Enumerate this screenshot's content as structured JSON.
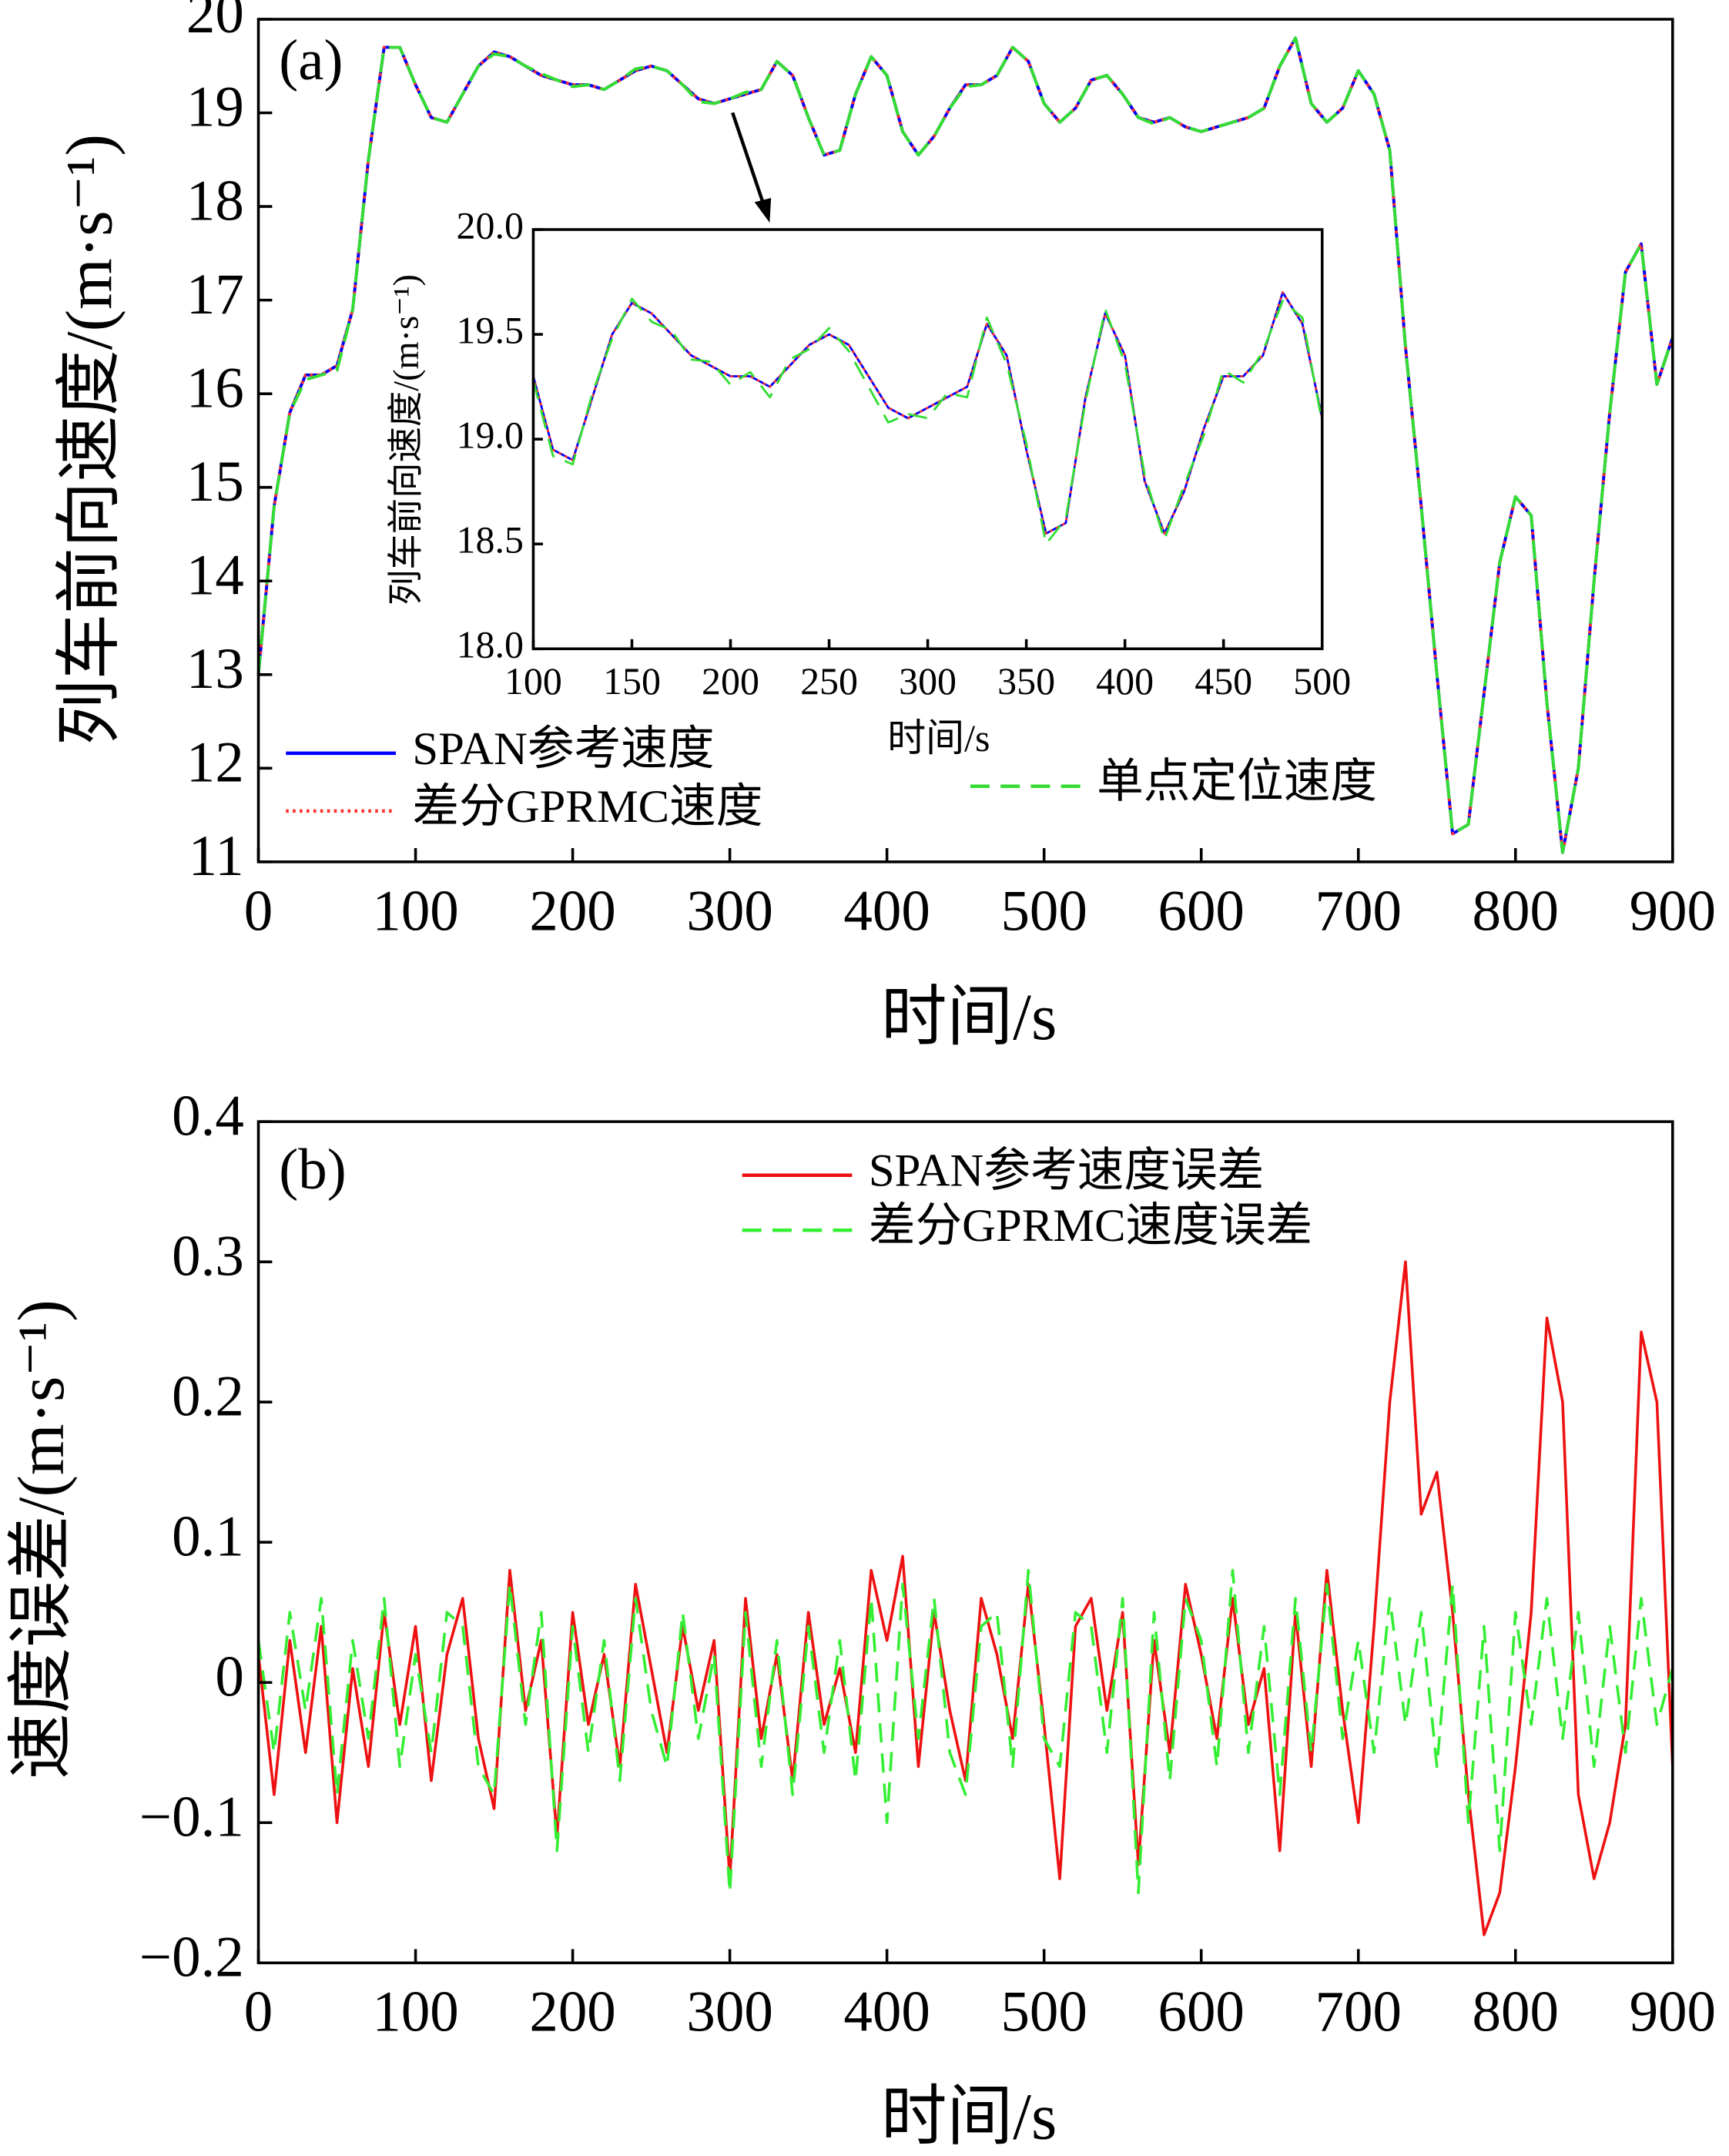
{
  "chart_data": [
    {
      "type": "line",
      "annotation": "(a)",
      "x_label": "时间/s",
      "y_label": "列车前向速度/(m·s⁻¹)",
      "xlim": [
        0,
        900
      ],
      "xticks": [
        0,
        100,
        200,
        300,
        400,
        500,
        600,
        700,
        800,
        900
      ],
      "ylim": [
        11,
        20
      ],
      "yticks": [
        11,
        12,
        13,
        14,
        15,
        16,
        17,
        18,
        19,
        20
      ],
      "x": [
        0,
        10,
        20,
        30,
        40,
        50,
        60,
        70,
        80,
        90,
        100,
        110,
        120,
        130,
        140,
        150,
        160,
        170,
        180,
        190,
        200,
        210,
        220,
        230,
        240,
        250,
        260,
        270,
        280,
        290,
        300,
        310,
        320,
        330,
        340,
        350,
        360,
        370,
        380,
        390,
        400,
        410,
        420,
        430,
        440,
        450,
        460,
        470,
        480,
        490,
        500,
        510,
        520,
        530,
        540,
        550,
        560,
        570,
        580,
        590,
        600,
        610,
        620,
        630,
        640,
        650,
        660,
        670,
        680,
        690,
        700,
        710,
        720,
        730,
        740,
        750,
        760,
        770,
        780,
        790,
        800,
        810,
        820,
        830,
        840,
        850,
        860,
        870,
        880,
        890,
        900
      ],
      "series": [
        {
          "name": "SPAN参考速度",
          "color": "#0000ff",
          "linestyle": "solid",
          "values": [
            13.0,
            14.8,
            15.8,
            16.2,
            16.2,
            16.3,
            16.9,
            18.5,
            19.7,
            19.7,
            19.3,
            18.95,
            18.9,
            19.2,
            19.5,
            19.65,
            19.6,
            19.5,
            19.4,
            19.35,
            19.3,
            19.3,
            19.25,
            19.35,
            19.45,
            19.5,
            19.45,
            19.3,
            19.15,
            19.1,
            19.15,
            19.2,
            19.25,
            19.55,
            19.4,
            18.95,
            18.55,
            18.6,
            19.2,
            19.6,
            19.4,
            18.8,
            18.55,
            18.75,
            19.05,
            19.3,
            19.3,
            19.4,
            19.7,
            19.55,
            19.1,
            18.9,
            19.05,
            19.35,
            19.4,
            19.2,
            18.95,
            18.9,
            18.95,
            18.85,
            18.8,
            18.85,
            18.9,
            18.95,
            19.05,
            19.5,
            19.8,
            19.1,
            18.9,
            19.05,
            19.45,
            19.2,
            18.6,
            16.5,
            14.8,
            13.0,
            11.3,
            11.4,
            12.8,
            14.2,
            14.9,
            14.7,
            12.7,
            11.1,
            12.0,
            14.0,
            15.8,
            17.3,
            17.6,
            16.1,
            16.6
          ]
        },
        {
          "name": "差分GPRMC速度",
          "color": "#ff3030",
          "linestyle": "dotted",
          "values": [
            13.0,
            14.8,
            15.8,
            16.2,
            16.2,
            16.3,
            16.9,
            18.5,
            19.7,
            19.7,
            19.3,
            18.95,
            18.9,
            19.2,
            19.5,
            19.65,
            19.6,
            19.5,
            19.4,
            19.35,
            19.3,
            19.3,
            19.25,
            19.35,
            19.45,
            19.5,
            19.45,
            19.3,
            19.15,
            19.1,
            19.15,
            19.2,
            19.25,
            19.55,
            19.4,
            18.95,
            18.55,
            18.6,
            19.2,
            19.6,
            19.4,
            18.8,
            18.55,
            18.75,
            19.05,
            19.3,
            19.3,
            19.4,
            19.7,
            19.55,
            19.1,
            18.9,
            19.05,
            19.35,
            19.4,
            19.2,
            18.95,
            18.9,
            18.95,
            18.85,
            18.8,
            18.85,
            18.9,
            18.95,
            19.05,
            19.5,
            19.8,
            19.1,
            18.9,
            19.05,
            19.45,
            19.2,
            18.6,
            16.5,
            14.8,
            13.0,
            11.3,
            11.4,
            12.8,
            14.2,
            14.9,
            14.7,
            12.7,
            11.1,
            12.0,
            14.0,
            15.8,
            17.3,
            17.6,
            16.1,
            16.6
          ]
        },
        {
          "name": "单点定位速度",
          "color": "#33dd33",
          "linestyle": "dashed",
          "values": [
            13.0,
            14.8,
            15.8,
            16.15,
            16.2,
            16.25,
            16.9,
            18.5,
            19.7,
            19.7,
            19.3,
            18.95,
            18.9,
            19.2,
            19.5,
            19.63,
            19.6,
            19.5,
            19.42,
            19.35,
            19.28,
            19.3,
            19.25,
            19.35,
            19.47,
            19.5,
            19.45,
            19.3,
            19.12,
            19.1,
            19.15,
            19.22,
            19.25,
            19.55,
            19.4,
            18.95,
            18.55,
            18.6,
            19.2,
            19.6,
            19.4,
            18.8,
            18.55,
            18.75,
            19.05,
            19.28,
            19.3,
            19.4,
            19.7,
            19.55,
            19.1,
            18.9,
            19.05,
            19.35,
            19.4,
            19.2,
            18.95,
            18.88,
            18.95,
            18.85,
            18.8,
            18.85,
            18.9,
            18.95,
            19.05,
            19.5,
            19.8,
            19.1,
            18.9,
            19.05,
            19.45,
            19.2,
            18.6,
            16.5,
            14.8,
            13.0,
            11.3,
            11.4,
            12.8,
            14.2,
            14.9,
            14.7,
            12.7,
            11.1,
            12.0,
            14.0,
            15.8,
            17.3,
            17.6,
            16.1,
            16.6
          ]
        }
      ]
    },
    {
      "type": "line",
      "x_label": "时间/s",
      "y_label": "列车前向速度/(m·s⁻¹)",
      "xlim": [
        100,
        500
      ],
      "xticks": [
        100,
        150,
        200,
        250,
        300,
        350,
        400,
        450,
        500
      ],
      "ylim": [
        18,
        20
      ],
      "yticks": [
        {
          "value": 18,
          "label": "18.0"
        },
        18.5,
        {
          "value": 19,
          "label": "19.0"
        },
        19.5,
        {
          "value": 20,
          "label": "20.0"
        }
      ],
      "x": [
        100,
        110,
        120,
        130,
        140,
        150,
        160,
        170,
        180,
        190,
        200,
        210,
        220,
        230,
        240,
        250,
        260,
        270,
        280,
        290,
        300,
        310,
        320,
        330,
        340,
        350,
        360,
        370,
        380,
        390,
        400,
        410,
        420,
        430,
        440,
        450,
        460,
        470,
        480,
        490,
        500
      ],
      "series": [
        {
          "name": "SPAN参考速度",
          "color": "#0000ff",
          "linestyle": "solid",
          "values": [
            19.3,
            18.95,
            18.9,
            19.2,
            19.5,
            19.65,
            19.6,
            19.5,
            19.4,
            19.35,
            19.3,
            19.3,
            19.25,
            19.35,
            19.45,
            19.5,
            19.45,
            19.3,
            19.15,
            19.1,
            19.15,
            19.2,
            19.25,
            19.55,
            19.4,
            18.95,
            18.55,
            18.6,
            19.2,
            19.6,
            19.4,
            18.8,
            18.55,
            18.75,
            19.05,
            19.3,
            19.3,
            19.4,
            19.7,
            19.55,
            19.1
          ]
        },
        {
          "name": "差分GPRMC速度",
          "color": "#ff3030",
          "linestyle": "dotted",
          "values": [
            19.3,
            18.95,
            18.9,
            19.2,
            19.5,
            19.65,
            19.6,
            19.5,
            19.4,
            19.35,
            19.3,
            19.3,
            19.25,
            19.35,
            19.45,
            19.5,
            19.45,
            19.3,
            19.15,
            19.1,
            19.15,
            19.2,
            19.25,
            19.55,
            19.4,
            18.95,
            18.55,
            18.6,
            19.2,
            19.6,
            19.4,
            18.8,
            18.55,
            18.75,
            19.05,
            19.3,
            19.3,
            19.4,
            19.7,
            19.55,
            19.1
          ]
        },
        {
          "name": "单点定位速度",
          "color": "#33dd33",
          "linestyle": "dashed",
          "values": [
            19.28,
            18.92,
            18.88,
            19.22,
            19.48,
            19.67,
            19.56,
            19.52,
            19.38,
            19.37,
            19.26,
            19.32,
            19.2,
            19.38,
            19.43,
            19.53,
            19.42,
            19.25,
            19.08,
            19.12,
            19.1,
            19.22,
            19.2,
            19.58,
            19.36,
            18.98,
            18.5,
            18.62,
            19.18,
            19.62,
            19.36,
            18.83,
            18.52,
            18.78,
            19.02,
            19.33,
            19.27,
            19.42,
            19.66,
            19.58,
            19.08
          ]
        }
      ]
    },
    {
      "type": "line",
      "annotation": "(b)",
      "x_label": "时间/s",
      "y_label": "速度误差/(m·s⁻¹)",
      "xlim": [
        0,
        900
      ],
      "xticks": [
        0,
        100,
        200,
        300,
        400,
        500,
        600,
        700,
        800,
        900
      ],
      "ylim": [
        -0.2,
        0.4
      ],
      "yticks": [
        {
          "value": -0.2,
          "label": "−0.2"
        },
        {
          "value": -0.1,
          "label": "−0.1"
        },
        0,
        0.1,
        0.2,
        0.3,
        0.4
      ],
      "x": [
        0,
        10,
        20,
        30,
        40,
        50,
        60,
        70,
        80,
        90,
        100,
        110,
        120,
        130,
        140,
        150,
        160,
        170,
        180,
        190,
        200,
        210,
        220,
        230,
        240,
        250,
        260,
        270,
        280,
        290,
        300,
        310,
        320,
        330,
        340,
        350,
        360,
        370,
        380,
        390,
        400,
        410,
        420,
        430,
        440,
        450,
        460,
        470,
        480,
        490,
        500,
        510,
        520,
        530,
        540,
        550,
        560,
        570,
        580,
        590,
        600,
        610,
        620,
        630,
        640,
        650,
        660,
        670,
        680,
        690,
        700,
        710,
        720,
        730,
        740,
        750,
        760,
        770,
        780,
        790,
        800,
        810,
        820,
        830,
        840,
        850,
        860,
        870,
        880,
        890,
        900
      ],
      "series": [
        {
          "name": "SPAN参考速度误差",
          "color": "#ee1111",
          "linestyle": "solid",
          "values": [
            0.02,
            -0.08,
            0.03,
            -0.05,
            0.04,
            -0.1,
            0.01,
            -0.06,
            0.05,
            -0.03,
            0.04,
            -0.07,
            0.02,
            0.06,
            -0.04,
            -0.09,
            0.08,
            -0.02,
            0.03,
            -0.11,
            0.05,
            -0.03,
            0.02,
            -0.06,
            0.07,
            0.01,
            -0.05,
            0.04,
            -0.02,
            0.03,
            -0.14,
            0.06,
            -0.04,
            0.02,
            -0.07,
            0.05,
            -0.03,
            0.01,
            -0.05,
            0.08,
            0.03,
            0.09,
            -0.06,
            0.05,
            -0.02,
            -0.07,
            0.06,
            0.02,
            -0.04,
            0.07,
            -0.03,
            -0.14,
            0.04,
            0.06,
            -0.02,
            0.05,
            -0.13,
            0.03,
            -0.05,
            0.07,
            0.02,
            -0.04,
            0.06,
            -0.03,
            0.01,
            -0.12,
            0.05,
            -0.06,
            0.08,
            -0.02,
            -0.1,
            0.04,
            0.2,
            0.3,
            0.12,
            0.15,
            0.05,
            -0.08,
            -0.18,
            -0.15,
            -0.06,
            0.05,
            0.26,
            0.2,
            -0.08,
            -0.14,
            -0.1,
            -0.03,
            0.25,
            0.2,
            -0.06
          ]
        },
        {
          "name": "差分GPRMC速度误差",
          "color": "#33ee33",
          "linestyle": "dashed",
          "values": [
            0.03,
            -0.05,
            0.05,
            -0.02,
            0.06,
            -0.08,
            0.03,
            -0.04,
            0.06,
            -0.06,
            0.02,
            -0.05,
            0.05,
            0.04,
            -0.06,
            -0.08,
            0.07,
            -0.03,
            0.05,
            -0.12,
            0.04,
            -0.05,
            0.03,
            -0.07,
            0.06,
            -0.02,
            -0.06,
            0.05,
            -0.04,
            0.02,
            -0.15,
            0.05,
            -0.06,
            0.03,
            -0.08,
            0.04,
            -0.05,
            0.03,
            -0.07,
            0.06,
            -0.1,
            0.07,
            -0.04,
            0.06,
            -0.05,
            -0.08,
            0.04,
            0.05,
            -0.06,
            0.08,
            -0.04,
            -0.06,
            0.05,
            0.04,
            -0.05,
            0.06,
            -0.15,
            0.05,
            -0.07,
            0.06,
            0.03,
            -0.06,
            0.08,
            -0.05,
            0.04,
            -0.08,
            0.06,
            -0.05,
            0.07,
            -0.04,
            0.03,
            -0.05,
            0.06,
            -0.03,
            0.05,
            -0.06,
            0.07,
            -0.1,
            0.04,
            -0.12,
            0.05,
            -0.03,
            0.06,
            -0.04,
            0.05,
            -0.06,
            0.04,
            -0.05,
            0.06,
            -0.03,
            0.01
          ]
        }
      ]
    }
  ]
}
